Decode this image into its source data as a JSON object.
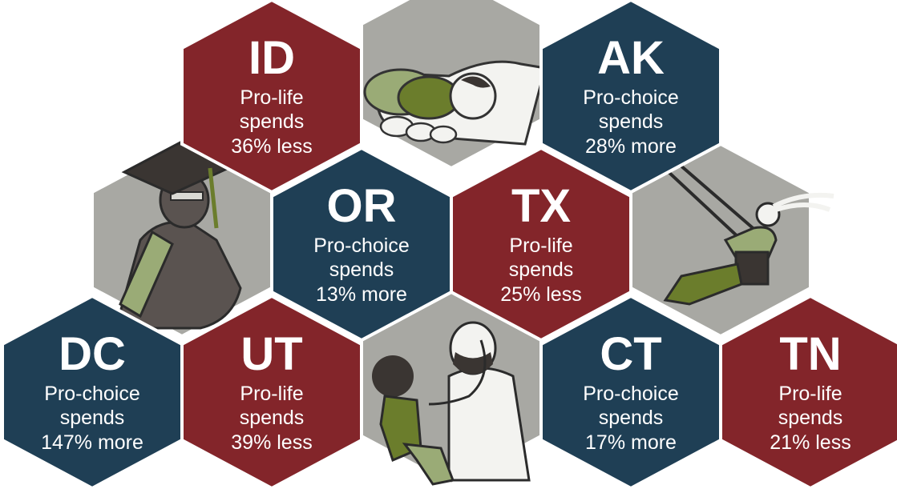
{
  "colors": {
    "pro_life": "#83252a",
    "pro_choice": "#1f3f55",
    "illustration_bg": "#a8a8a3",
    "gap": "#ffffff"
  },
  "states": [
    {
      "abbr": "ID",
      "stance": "Pro-life",
      "line2": "spends",
      "change": "36% less"
    },
    {
      "abbr": "AK",
      "stance": "Pro-choice",
      "line2": "spends",
      "change": "28% more"
    },
    {
      "abbr": "OR",
      "stance": "Pro-choice",
      "line2": "spends",
      "change": "13% more"
    },
    {
      "abbr": "TX",
      "stance": "Pro-life",
      "line2": "spends",
      "change": "25% less"
    },
    {
      "abbr": "DC",
      "stance": "Pro-choice",
      "line2": "spends",
      "change": "147% more"
    },
    {
      "abbr": "UT",
      "stance": "Pro-life",
      "line2": "spends",
      "change": "39% less"
    },
    {
      "abbr": "CT",
      "stance": "Pro-choice",
      "line2": "spends",
      "change": "17% more"
    },
    {
      "abbr": "TN",
      "stance": "Pro-life",
      "line2": "spends",
      "change": "21% less"
    }
  ],
  "illustrations": [
    "baby-in-hands-illustration",
    "graduate-illustration",
    "child-on-swing-illustration",
    "doctor-and-child-illustration"
  ]
}
